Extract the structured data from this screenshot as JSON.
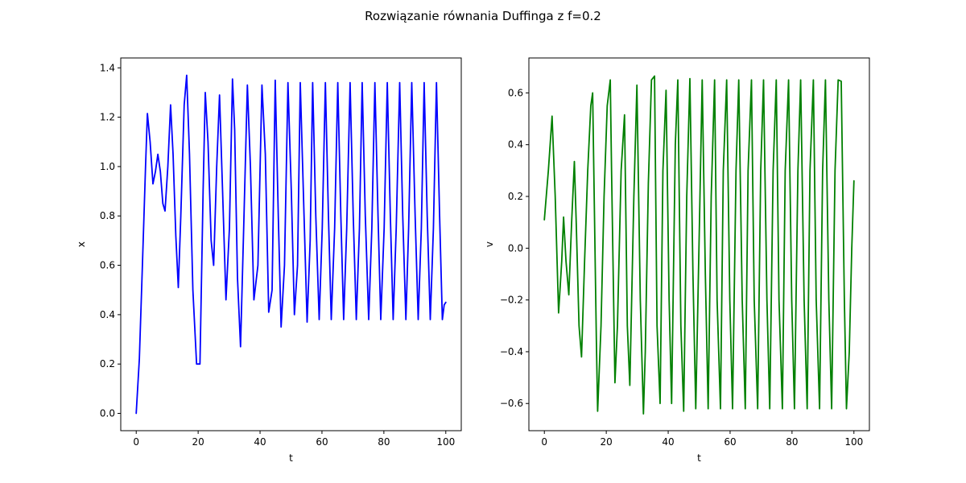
{
  "figure": {
    "suptitle": "Rozwiązanie równania Duffinga z f=0.2"
  },
  "chart_data": [
    {
      "type": "line",
      "title": "",
      "xlabel": "t",
      "ylabel": "x",
      "xlim": [
        -5,
        105
      ],
      "ylim": [
        -0.07,
        1.44
      ],
      "xticks": [
        0,
        20,
        40,
        60,
        80,
        100
      ],
      "yticks": [
        0.0,
        0.2,
        0.4,
        0.6,
        0.8,
        1.0,
        1.2,
        1.4
      ],
      "ytick_labels": [
        "0.0",
        "0.2",
        "0.4",
        "0.6",
        "0.8",
        "1.0",
        "1.2",
        "1.4"
      ],
      "grid": false,
      "legend": "none",
      "color": "#0000ff",
      "series": [
        {
          "x": [
            0,
            1.0,
            2.0,
            3.0,
            3.6,
            4.5,
            5.4,
            6.2,
            7.0,
            7.8,
            8.6,
            9.3,
            10.2,
            11.1,
            11.9,
            12.8,
            13.6,
            14.4,
            15.5,
            16.3,
            17.2,
            18.3,
            19.5,
            20.6,
            21.6,
            22.3,
            23.2,
            24.2,
            25.0,
            26.0,
            26.9,
            27.9,
            29.0,
            30.1,
            31.1,
            31.8,
            32.7,
            33.7,
            34.7,
            35.9,
            36.9,
            38.0,
            39.3,
            40.6,
            41.7,
            42.8,
            43.9,
            44.9,
            45.9,
            46.8,
            47.9,
            49.0,
            50.1,
            51.1,
            52.1,
            53.0,
            54.2,
            55.2,
            56.2,
            57.0,
            58.0,
            59.1,
            60.1,
            61.1,
            62.1,
            63.0,
            64.1,
            65.1,
            66.1,
            67.0,
            68.0,
            69.1,
            70.1,
            71.1,
            72.1,
            73.0,
            74.0,
            75.1,
            76.1,
            77.1,
            78.1,
            79.0,
            80.1,
            81.1,
            82.1,
            83.0,
            84.0,
            85.1,
            86.1,
            87.1,
            88.0,
            89.0,
            90.1,
            91.1,
            92.1,
            93.0,
            94.0,
            95.0,
            96.0,
            97.0,
            98.0,
            98.9,
            99.5,
            100
          ],
          "y": [
            0.0,
            0.22,
            0.6,
            1.0,
            1.215,
            1.1,
            0.93,
            0.98,
            1.05,
            0.98,
            0.85,
            0.82,
            1.0,
            1.25,
            1.05,
            0.72,
            0.51,
            0.8,
            1.25,
            1.37,
            1.05,
            0.5,
            0.2,
            0.2,
            0.9,
            1.3,
            1.1,
            0.7,
            0.6,
            1.0,
            1.29,
            0.9,
            0.46,
            0.75,
            1.355,
            1.15,
            0.55,
            0.27,
            0.75,
            1.33,
            1.0,
            0.46,
            0.6,
            1.33,
            1.05,
            0.41,
            0.5,
            1.35,
            0.8,
            0.35,
            0.6,
            1.34,
            0.9,
            0.4,
            0.6,
            1.34,
            0.8,
            0.37,
            0.7,
            1.34,
            0.8,
            0.38,
            0.75,
            1.34,
            0.8,
            0.38,
            0.75,
            1.34,
            0.8,
            0.38,
            0.75,
            1.34,
            0.8,
            0.38,
            0.75,
            1.34,
            0.8,
            0.38,
            0.75,
            1.34,
            0.8,
            0.38,
            0.75,
            1.34,
            0.8,
            0.38,
            0.75,
            1.34,
            0.8,
            0.38,
            0.75,
            1.34,
            0.8,
            0.38,
            0.75,
            1.34,
            0.8,
            0.38,
            0.75,
            1.34,
            0.8,
            0.38,
            0.44,
            0.45
          ]
        }
      ]
    },
    {
      "type": "line",
      "title": "",
      "xlabel": "t",
      "ylabel": "v",
      "xlim": [
        -5,
        105
      ],
      "ylim": [
        -0.705,
        0.735
      ],
      "xticks": [
        0,
        20,
        40,
        60,
        80,
        100
      ],
      "yticks": [
        -0.6,
        -0.4,
        -0.2,
        0.0,
        0.2,
        0.4,
        0.6
      ],
      "ytick_labels": [
        "−0.6",
        "−0.4",
        "−0.2",
        "0.0",
        "0.2",
        "0.4",
        "0.6"
      ],
      "grid": false,
      "legend": "none",
      "color": "#008000",
      "series": [
        {
          "x": [
            0,
            1.3,
            2.5,
            3.5,
            4.6,
            5.6,
            6.2,
            7.0,
            7.9,
            8.8,
            9.7,
            10.3,
            11.2,
            12.0,
            13.0,
            14.0,
            15.0,
            15.6,
            16.8,
            17.2,
            18.3,
            19.3,
            20.3,
            21.3,
            21.7,
            22.8,
            23.6,
            24.8,
            25.9,
            26.8,
            27.6,
            28.9,
            29.9,
            31.0,
            32.0,
            32.6,
            33.6,
            34.6,
            35.6,
            36.4,
            37.4,
            38.3,
            39.3,
            40.3,
            41.1,
            42.3,
            43.1,
            44.1,
            45.0,
            46.0,
            47.0,
            48.0,
            48.9,
            50.1,
            51.0,
            52.0,
            52.9,
            53.9,
            55.0,
            55.8,
            56.9,
            57.8,
            58.9,
            59.9,
            60.8,
            61.9,
            62.8,
            63.9,
            64.9,
            65.8,
            66.9,
            67.8,
            68.9,
            69.9,
            70.8,
            71.9,
            72.8,
            73.9,
            74.9,
            75.8,
            76.9,
            77.8,
            78.9,
            79.9,
            80.8,
            81.9,
            82.8,
            83.9,
            84.9,
            85.8,
            86.9,
            87.8,
            88.9,
            89.9,
            90.8,
            91.9,
            92.8,
            93.9,
            94.9,
            95.9,
            96.9,
            97.6,
            98.5,
            99.3,
            100
          ],
          "y": [
            0.11,
            0.3,
            0.51,
            0.2,
            -0.25,
            -0.05,
            0.12,
            -0.05,
            -0.18,
            0.1,
            0.335,
            0.1,
            -0.3,
            -0.42,
            -0.05,
            0.3,
            0.55,
            0.6,
            -0.35,
            -0.63,
            -0.3,
            0.2,
            0.55,
            0.65,
            0.3,
            -0.52,
            -0.3,
            0.3,
            0.515,
            -0.3,
            -0.53,
            0.2,
            0.63,
            -0.2,
            -0.64,
            -0.4,
            0.25,
            0.65,
            0.665,
            -0.3,
            -0.6,
            0.3,
            0.61,
            -0.2,
            -0.6,
            0.4,
            0.65,
            -0.3,
            -0.63,
            0.2,
            0.655,
            -0.1,
            -0.62,
            0.1,
            0.65,
            -0.1,
            -0.62,
            0.2,
            0.65,
            -0.2,
            -0.62,
            0.3,
            0.65,
            -0.2,
            -0.62,
            0.3,
            0.65,
            -0.2,
            -0.62,
            0.3,
            0.65,
            -0.2,
            -0.62,
            0.3,
            0.65,
            -0.2,
            -0.62,
            0.3,
            0.65,
            -0.2,
            -0.62,
            0.3,
            0.65,
            -0.2,
            -0.62,
            0.3,
            0.65,
            -0.2,
            -0.62,
            0.3,
            0.65,
            -0.2,
            -0.62,
            0.3,
            0.65,
            -0.2,
            -0.62,
            0.3,
            0.65,
            0.645,
            -0.2,
            -0.62,
            -0.4,
            0.0,
            0.26
          ]
        }
      ]
    }
  ]
}
